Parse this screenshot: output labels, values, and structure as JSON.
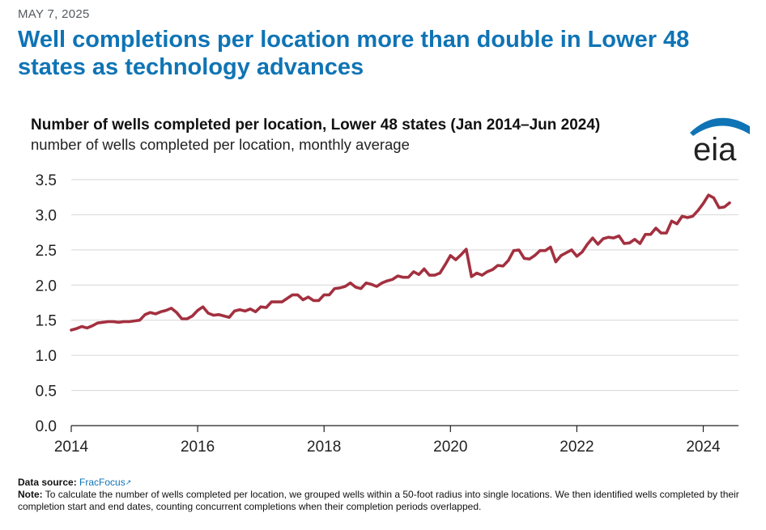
{
  "date": "MAY 7, 2025",
  "headline": "Well completions per location more than double in Lower 48 states as technology advances",
  "brand": {
    "logo_text": "eia",
    "swoosh_color": "#0f74b5",
    "text_color": "#222222"
  },
  "footer": {
    "source_label": "Data source:",
    "source_name": "FracFocus",
    "note_label": "Note:",
    "note_text": "To calculate the number of wells completed per location, we grouped wells within a 50-foot radius into single locations. We then identified wells completed by their completion start and end dates, counting concurrent completions when their completion periods overlapped."
  },
  "chart_data": {
    "type": "line",
    "title": "Number of wells completed per location, Lower 48 states (Jan 2014–Jun 2024)",
    "subtitle": "number of wells completed per location, monthly average",
    "xlabel": "",
    "ylabel": "",
    "ylim": [
      0,
      3.5
    ],
    "y_ticks": [
      "0.0",
      "0.5",
      "1.0",
      "1.5",
      "2.0",
      "2.5",
      "3.0",
      "3.5"
    ],
    "x_ticks": [
      "2014",
      "2016",
      "2018",
      "2020",
      "2022",
      "2024"
    ],
    "grid": "horizontal",
    "line_color": "#a3303f",
    "x_start": "2014-01",
    "x_end": "2024-06",
    "series": [
      {
        "values": [
          1.36,
          1.38,
          1.41,
          1.39,
          1.42,
          1.46,
          1.47,
          1.48,
          1.48,
          1.47,
          1.48,
          1.48,
          1.49,
          1.5,
          1.58,
          1.61,
          1.59,
          1.62,
          1.64,
          1.67,
          1.61,
          1.52,
          1.52,
          1.56,
          1.64,
          1.69,
          1.6,
          1.57,
          1.58,
          1.56,
          1.54,
          1.63,
          1.65,
          1.63,
          1.66,
          1.62,
          1.69,
          1.68,
          1.76,
          1.76,
          1.76,
          1.81,
          1.86,
          1.86,
          1.79,
          1.83,
          1.78,
          1.78,
          1.86,
          1.86,
          1.95,
          1.96,
          1.98,
          2.03,
          1.97,
          1.95,
          2.03,
          2.01,
          1.98,
          2.03,
          2.06,
          2.08,
          2.13,
          2.11,
          2.11,
          2.19,
          2.15,
          2.23,
          2.14,
          2.14,
          2.17,
          2.29,
          2.42,
          2.36,
          2.43,
          2.51,
          2.12,
          2.17,
          2.14,
          2.19,
          2.22,
          2.28,
          2.27,
          2.35,
          2.49,
          2.5,
          2.38,
          2.37,
          2.42,
          2.49,
          2.49,
          2.54,
          2.33,
          2.42,
          2.46,
          2.5,
          2.41,
          2.47,
          2.58,
          2.67,
          2.58,
          2.66,
          2.68,
          2.67,
          2.7,
          2.59,
          2.6,
          2.65,
          2.59,
          2.72,
          2.72,
          2.81,
          2.74,
          2.74,
          2.91,
          2.87,
          2.98,
          2.96,
          2.98,
          3.06,
          3.16,
          3.28,
          3.24,
          3.1,
          3.11,
          3.17
        ]
      }
    ]
  }
}
